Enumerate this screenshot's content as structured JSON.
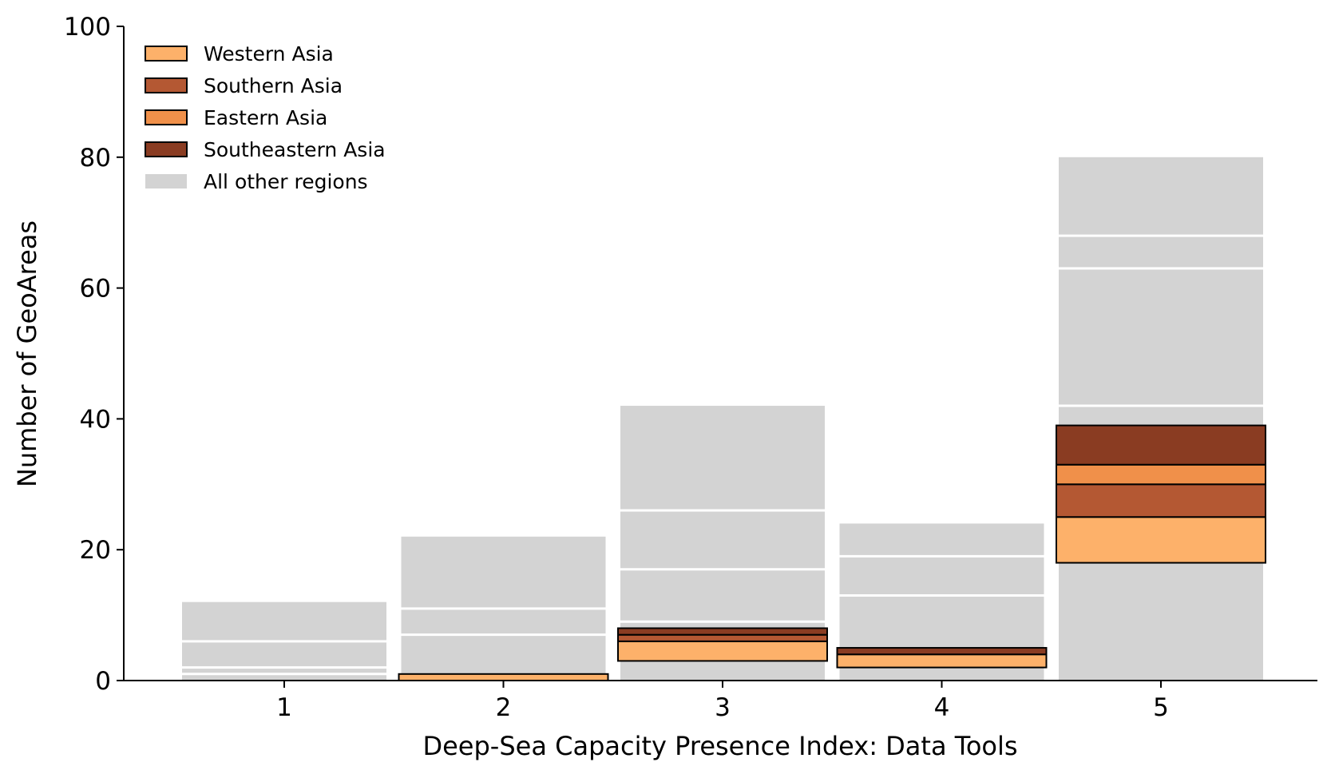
{
  "chart_data": {
    "type": "bar",
    "stacked": true,
    "xlabel": "Deep-Sea Capacity Presence Index: Data Tools",
    "ylabel": "Number of GeoAreas",
    "categories": [
      "1",
      "2",
      "3",
      "4",
      "5"
    ],
    "ylim": [
      0,
      100
    ],
    "yticks": [
      "0",
      "20",
      "40",
      "60",
      "80",
      "100"
    ],
    "grid": false,
    "legend_position": "top-left",
    "series": [
      {
        "name": "Western Asia",
        "color": "#fdb16a",
        "values": [
          0,
          1,
          3,
          2,
          7
        ]
      },
      {
        "name": "Southern Asia",
        "color": "#b45833",
        "values": [
          0,
          0,
          1,
          0,
          5
        ]
      },
      {
        "name": "Eastern Asia",
        "color": "#f0904a",
        "values": [
          0,
          0,
          0,
          0,
          3
        ]
      },
      {
        "name": "Southeastern Asia",
        "color": "#8a3c22",
        "values": [
          0,
          0,
          1,
          1,
          6
        ]
      }
    ],
    "highlight_base": [
      0,
      0,
      3,
      2,
      18
    ],
    "background_series": {
      "name": "All other regions",
      "color": "#d3d3d3",
      "totals": [
        12,
        22,
        42,
        24,
        80
      ],
      "segment_boundaries": [
        [
          1,
          2,
          6
        ],
        [
          7,
          11
        ],
        [
          9,
          17,
          26
        ],
        [
          13,
          19
        ],
        [
          42,
          63,
          68
        ]
      ]
    }
  }
}
